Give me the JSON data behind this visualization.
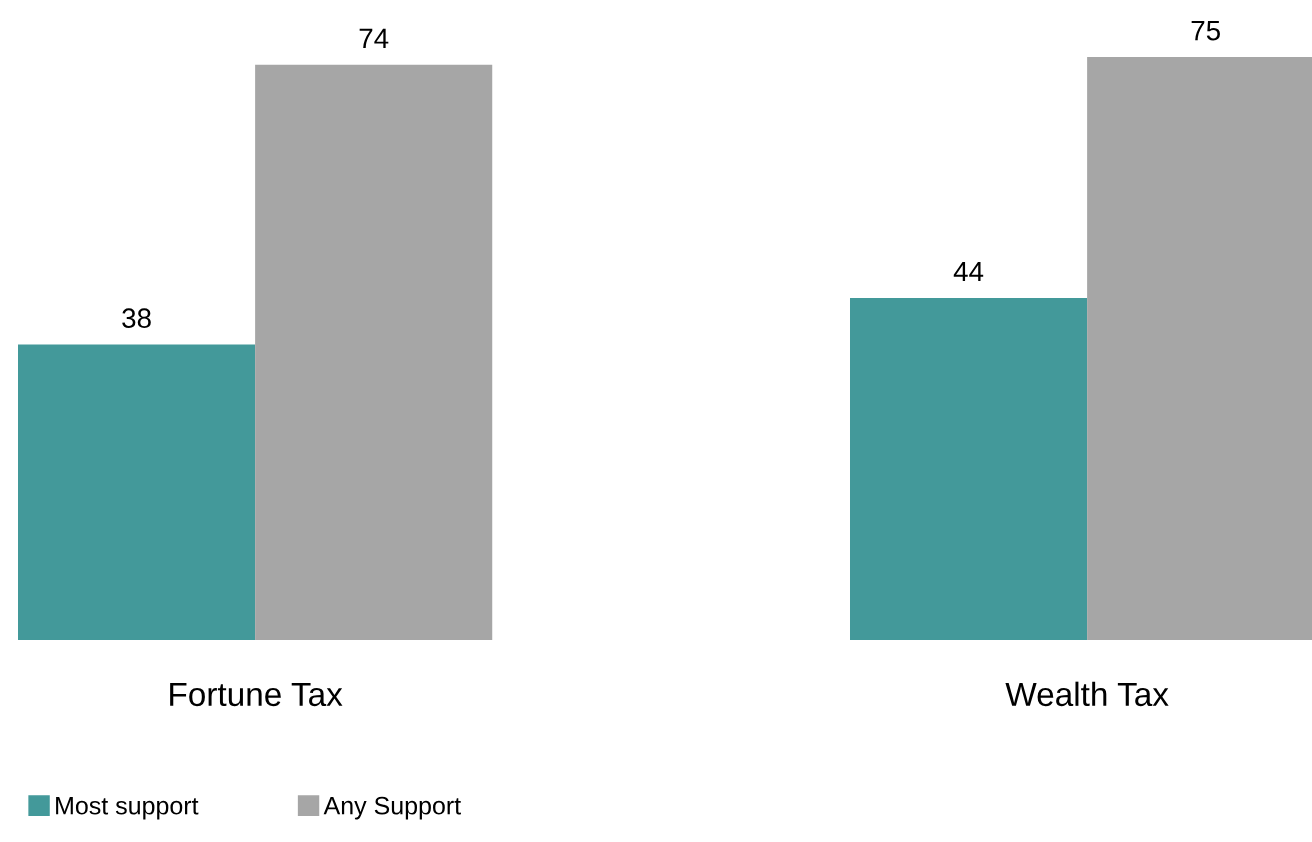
{
  "chart_data": {
    "type": "bar",
    "categories": [
      "Fortune Tax",
      "Wealth Tax"
    ],
    "series": [
      {
        "name": "Most support",
        "color": "#43999a",
        "values": [
          38,
          44
        ]
      },
      {
        "name": "Any Support",
        "color": "#a6a6a6",
        "values": [
          74,
          75
        ]
      }
    ],
    "data_labels": true,
    "legend": "bottom left",
    "grid": false
  }
}
